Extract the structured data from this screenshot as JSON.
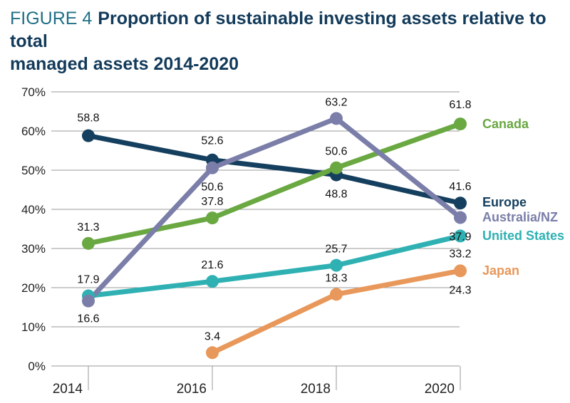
{
  "title": {
    "label": "FIGURE 4",
    "line1": "Proportion of sustainable investing assets relative to total",
    "line2": "managed assets 2014-2020"
  },
  "chart_data": {
    "type": "line",
    "title": "Proportion of sustainable investing assets relative to total managed assets 2014-2020",
    "x": [
      "2014",
      "2016",
      "2018",
      "2020"
    ],
    "xlabel": "",
    "ylabel": "",
    "ylim": [
      0,
      70
    ],
    "yticks": [
      "0%",
      "10%",
      "20%",
      "30%",
      "40%",
      "50%",
      "60%",
      "70%"
    ],
    "grid": "horizontal",
    "legend_placement": "right",
    "series": [
      {
        "name": "Canada",
        "color": "#6aa842",
        "values": [
          31.3,
          37.8,
          50.6,
          61.8
        ],
        "labels": [
          "31.3",
          "37.8",
          "50.6",
          "61.8"
        ]
      },
      {
        "name": "Europe",
        "color": "#153f5e",
        "values": [
          58.8,
          52.6,
          48.8,
          41.6
        ],
        "labels": [
          "58.8",
          "52.6",
          "48.8",
          "41.6"
        ]
      },
      {
        "name": "Australia/NZ",
        "color": "#7a7ea8",
        "values": [
          16.6,
          50.6,
          63.2,
          37.9
        ],
        "labels": [
          "16.6",
          "50.6",
          "63.2",
          "37.9"
        ]
      },
      {
        "name": "United States",
        "color": "#2fb1b3",
        "values": [
          17.9,
          21.6,
          25.7,
          33.2
        ],
        "labels": [
          "17.9",
          "21.6",
          "25.7",
          "33.2"
        ]
      },
      {
        "name": "Japan",
        "color": "#e8985a",
        "values": [
          null,
          3.4,
          18.3,
          24.3
        ],
        "labels": [
          null,
          "3.4",
          "18.3",
          "24.3"
        ]
      }
    ]
  }
}
